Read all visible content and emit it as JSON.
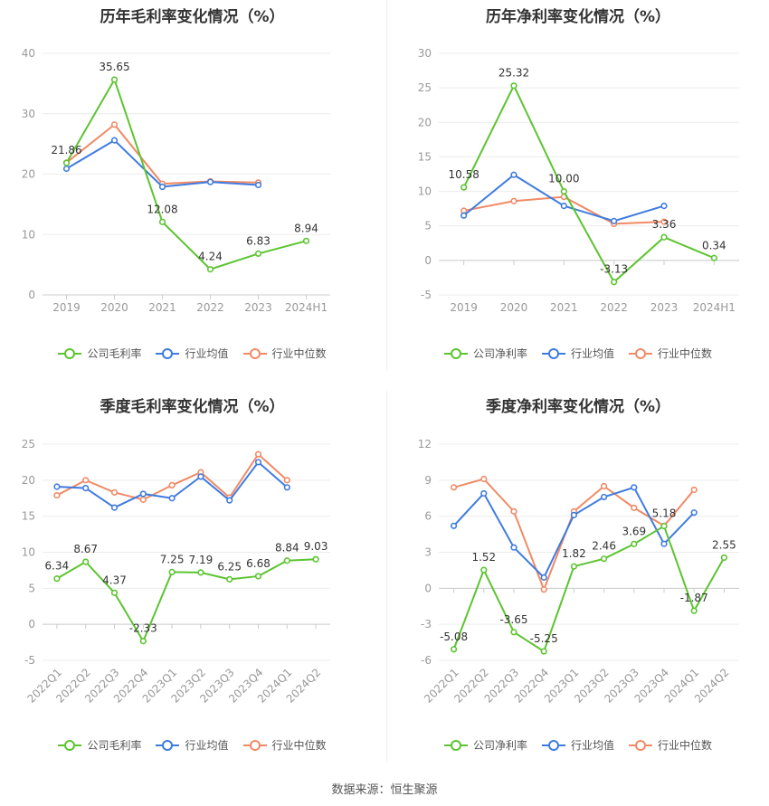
{
  "footer": {
    "source": "数据来源：恒生聚源"
  },
  "colors": {
    "company": "#5cc430",
    "avg": "#3e7be0",
    "median": "#f08a66"
  },
  "chart_data": [
    {
      "type": "line",
      "title": "历年毛利率变化情况（%）",
      "categories": [
        "2019",
        "2020",
        "2021",
        "2022",
        "2023",
        "2024H1"
      ],
      "ylim": [
        0,
        40
      ],
      "yticks": [
        0,
        10,
        20,
        30,
        40
      ],
      "series": [
        {
          "name": "公司毛利率",
          "key": "company",
          "values": [
            21.86,
            35.65,
            12.08,
            4.24,
            6.83,
            8.94
          ],
          "labels": [
            "21.86",
            "35.65",
            "12.08",
            "4.24",
            "6.83",
            "8.94"
          ]
        },
        {
          "name": "行业均值",
          "key": "avg",
          "values": [
            20.9,
            25.6,
            17.9,
            18.7,
            18.2,
            null
          ]
        },
        {
          "name": "行业中位数",
          "key": "median",
          "values": [
            21.9,
            28.2,
            18.4,
            18.8,
            18.6,
            null
          ]
        }
      ],
      "legend": "bottom-center",
      "grid": true
    },
    {
      "type": "line",
      "title": "历年净利率变化情况（%）",
      "categories": [
        "2019",
        "2020",
        "2021",
        "2022",
        "2023",
        "2024H1"
      ],
      "ylim": [
        -5,
        30
      ],
      "yticks": [
        -5,
        0,
        5,
        10,
        15,
        20,
        25,
        30
      ],
      "series": [
        {
          "name": "公司净利率",
          "key": "company",
          "values": [
            10.58,
            25.32,
            10.0,
            -3.13,
            3.36,
            0.34
          ],
          "labels": [
            "10.58",
            "25.32",
            "10.00",
            "-3.13",
            "3.36",
            "0.34"
          ]
        },
        {
          "name": "行业均值",
          "key": "avg",
          "values": [
            6.5,
            12.4,
            7.9,
            5.7,
            7.9,
            null
          ]
        },
        {
          "name": "行业中位数",
          "key": "median",
          "values": [
            7.2,
            8.6,
            9.2,
            5.3,
            5.6,
            null
          ]
        }
      ],
      "legend": "bottom-center",
      "grid": true
    },
    {
      "type": "line",
      "title": "季度毛利率变化情况（%）",
      "categories": [
        "2022Q1",
        "2022Q2",
        "2022Q3",
        "2022Q4",
        "2023Q1",
        "2023Q2",
        "2023Q3",
        "2023Q4",
        "2024Q1",
        "2024Q2"
      ],
      "ylim": [
        -5,
        25
      ],
      "yticks": [
        -5,
        0,
        5,
        10,
        15,
        20,
        25
      ],
      "series": [
        {
          "name": "公司毛利率",
          "key": "company",
          "values": [
            6.34,
            8.67,
            4.37,
            -2.33,
            7.25,
            7.19,
            6.25,
            6.68,
            8.84,
            9.03
          ],
          "labels": [
            "6.34",
            "8.67",
            "4.37",
            "-2.33",
            "7.25",
            "7.19",
            "6.25",
            "6.68",
            "8.84",
            "9.03"
          ]
        },
        {
          "name": "行业均值",
          "key": "avg",
          "values": [
            19.1,
            18.9,
            16.2,
            18.1,
            17.5,
            20.5,
            17.2,
            22.5,
            19.0,
            null
          ]
        },
        {
          "name": "行业中位数",
          "key": "median",
          "values": [
            17.9,
            20.0,
            18.3,
            17.3,
            19.3,
            21.1,
            17.6,
            23.6,
            20.0,
            null
          ]
        }
      ],
      "legend": "bottom-center",
      "grid": true
    },
    {
      "type": "line",
      "title": "季度净利率变化情况（%）",
      "categories": [
        "2022Q1",
        "2022Q2",
        "2022Q3",
        "2022Q4",
        "2023Q1",
        "2023Q2",
        "2023Q3",
        "2023Q4",
        "2024Q1",
        "2024Q2"
      ],
      "ylim": [
        -6,
        12
      ],
      "yticks": [
        -6,
        -3,
        0,
        3,
        6,
        9,
        12
      ],
      "series": [
        {
          "name": "公司净利率",
          "key": "company",
          "values": [
            -5.08,
            1.52,
            -3.65,
            -5.25,
            1.82,
            2.46,
            3.69,
            5.18,
            -1.87,
            2.55
          ],
          "labels": [
            "-5.08",
            "1.52",
            "-3.65",
            "-5.25",
            "1.82",
            "2.46",
            "3.69",
            "5.18",
            "-1.87",
            "2.55"
          ]
        },
        {
          "name": "行业均值",
          "key": "avg",
          "values": [
            5.2,
            7.9,
            3.4,
            0.9,
            6.1,
            7.6,
            8.4,
            3.7,
            6.3,
            null
          ]
        },
        {
          "name": "行业中位数",
          "key": "median",
          "values": [
            8.4,
            9.1,
            6.4,
            -0.1,
            6.4,
            8.5,
            6.7,
            5.2,
            8.2,
            null
          ]
        }
      ],
      "legend": "bottom-center",
      "grid": true
    }
  ]
}
